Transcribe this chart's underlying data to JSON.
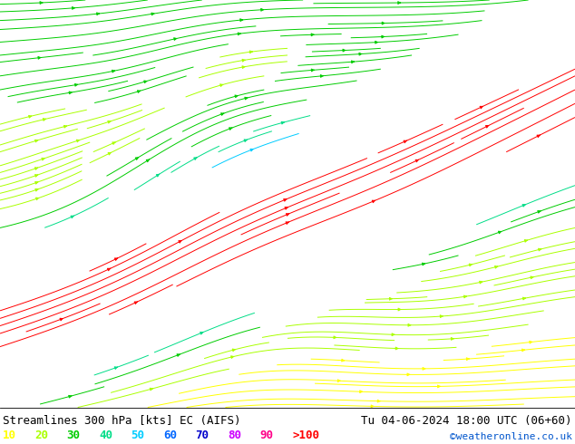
{
  "title_left": "Streamlines 300 hPa [kts] EC (AIFS)",
  "title_right": "Tu 04-06-2024 18:00 UTC (06+60)",
  "watermark": "©weatheronline.co.uk",
  "legend_values": [
    "10",
    "20",
    "30",
    "40",
    "50",
    "60",
    "70",
    "80",
    "90",
    ">100"
  ],
  "legend_colors": [
    "#ffff00",
    "#aaff00",
    "#00cc00",
    "#00dd88",
    "#00ccff",
    "#0066ff",
    "#0000cc",
    "#cc00ff",
    "#ff0088",
    "#ff0000"
  ],
  "ocean_color": "#b8e896",
  "land_color": "#d8d8d8",
  "fig_bg": "#ffffff",
  "border_color": "#888888",
  "font_size_title": 9,
  "font_size_legend": 9,
  "fig_width": 6.34,
  "fig_height": 4.9,
  "dpi": 100,
  "lon_min": -60,
  "lon_max": 50,
  "lat_min": 20,
  "lat_max": 75
}
